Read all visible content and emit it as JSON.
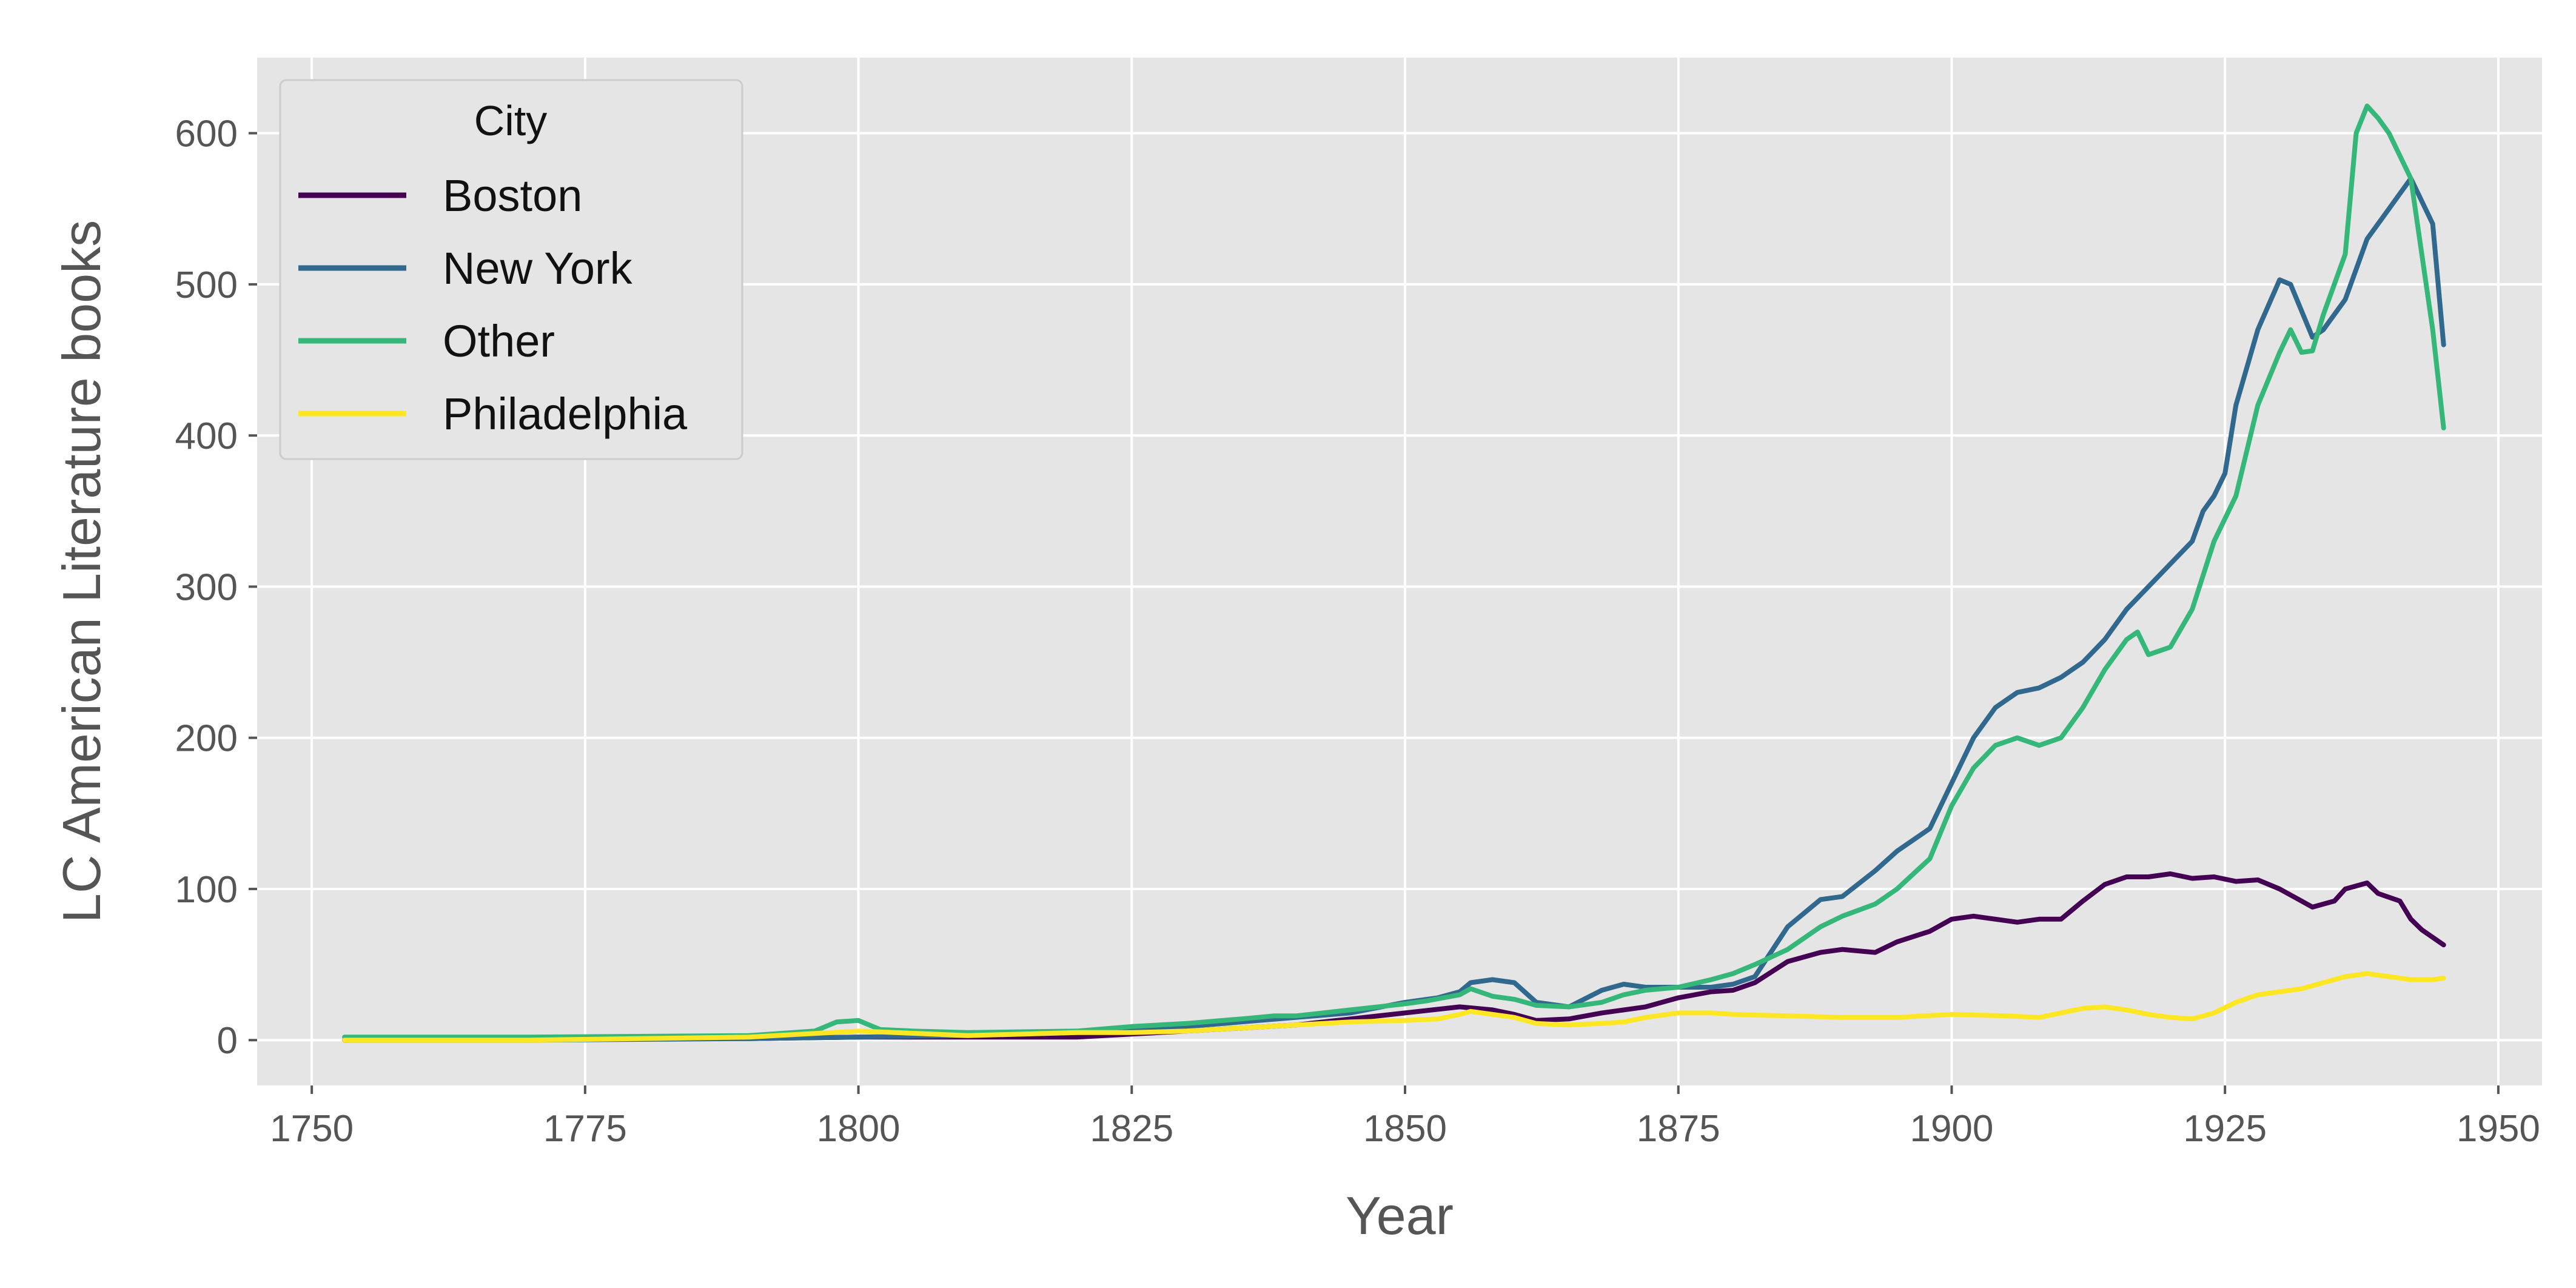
{
  "chart_data": {
    "type": "line",
    "xlabel": "Year",
    "ylabel": "LC American Literature books",
    "xlim": [
      1745,
      1954
    ],
    "ylim": [
      -30,
      650
    ],
    "xticks": [
      1750,
      1775,
      1800,
      1825,
      1850,
      1875,
      1900,
      1925,
      1950
    ],
    "yticks": [
      0,
      100,
      200,
      300,
      400,
      500,
      600
    ],
    "xtick_labels": [
      "1750",
      "1775",
      "1800",
      "1825",
      "1850",
      "1875",
      "1900",
      "1925",
      "1950"
    ],
    "ytick_labels": [
      "0",
      "100",
      "200",
      "300",
      "400",
      "500",
      "600"
    ],
    "grid": true,
    "background": "#e5e5e5",
    "legend": {
      "title": "City",
      "position": "top-left"
    },
    "series": [
      {
        "name": "Boston",
        "color": "#440154",
        "x": [
          1753,
          1760,
          1770,
          1780,
          1790,
          1800,
          1810,
          1820,
          1825,
          1830,
          1835,
          1840,
          1845,
          1850,
          1855,
          1858,
          1860,
          1862,
          1865,
          1868,
          1870,
          1872,
          1875,
          1878,
          1880,
          1882,
          1885,
          1888,
          1890,
          1893,
          1895,
          1898,
          1900,
          1902,
          1904,
          1906,
          1908,
          1910,
          1912,
          1914,
          1916,
          1918,
          1920,
          1922,
          1924,
          1926,
          1928,
          1930,
          1932,
          1933,
          1934,
          1935,
          1936,
          1938,
          1939,
          1941,
          1942,
          1943,
          1945
        ],
        "y": [
          0,
          1,
          1,
          1,
          1,
          2,
          2,
          2,
          4,
          6,
          8,
          10,
          14,
          18,
          22,
          20,
          17,
          13,
          14,
          18,
          20,
          22,
          28,
          32,
          33,
          38,
          52,
          58,
          60,
          58,
          65,
          72,
          80,
          82,
          80,
          78,
          80,
          80,
          92,
          103,
          108,
          108,
          110,
          107,
          108,
          105,
          106,
          100,
          92,
          88,
          90,
          92,
          100,
          104,
          97,
          92,
          80,
          73,
          63
        ]
      },
      {
        "name": "New York",
        "color": "#31688e",
        "x": [
          1753,
          1770,
          1790,
          1800,
          1810,
          1820,
          1825,
          1830,
          1835,
          1840,
          1845,
          1850,
          1853,
          1855,
          1856,
          1858,
          1860,
          1862,
          1865,
          1868,
          1870,
          1872,
          1875,
          1878,
          1880,
          1882,
          1885,
          1888,
          1890,
          1893,
          1895,
          1898,
          1900,
          1902,
          1904,
          1906,
          1908,
          1910,
          1912,
          1914,
          1916,
          1918,
          1920,
          1922,
          1923,
          1924,
          1925,
          1926,
          1928,
          1930,
          1931,
          1933,
          1934,
          1936,
          1937,
          1938,
          1940,
          1941,
          1942,
          1944,
          1945
        ],
        "y": [
          0,
          0,
          1,
          2,
          3,
          5,
          7,
          9,
          12,
          15,
          18,
          25,
          28,
          32,
          38,
          40,
          38,
          25,
          22,
          33,
          37,
          35,
          35,
          35,
          37,
          42,
          75,
          93,
          95,
          112,
          125,
          140,
          170,
          200,
          220,
          230,
          233,
          240,
          250,
          265,
          285,
          300,
          315,
          330,
          350,
          360,
          375,
          420,
          470,
          503,
          500,
          465,
          470,
          490,
          510,
          530,
          550,
          560,
          570,
          540,
          460
        ]
      },
      {
        "name": "Other",
        "color": "#35b779",
        "x": [
          1753,
          1770,
          1790,
          1796,
          1798,
          1800,
          1802,
          1805,
          1810,
          1820,
          1825,
          1830,
          1835,
          1838,
          1840,
          1845,
          1850,
          1852,
          1855,
          1856,
          1858,
          1860,
          1862,
          1865,
          1868,
          1870,
          1872,
          1875,
          1878,
          1880,
          1882,
          1885,
          1888,
          1890,
          1893,
          1895,
          1898,
          1900,
          1902,
          1904,
          1906,
          1908,
          1910,
          1912,
          1914,
          1916,
          1917,
          1918,
          1920,
          1922,
          1924,
          1926,
          1928,
          1930,
          1931,
          1932,
          1933,
          1934,
          1936,
          1937,
          1938,
          1939,
          1940,
          1942,
          1944,
          1945
        ],
        "y": [
          2,
          2,
          3,
          6,
          12,
          13,
          7,
          6,
          5,
          6,
          9,
          11,
          14,
          16,
          16,
          20,
          24,
          26,
          30,
          34,
          29,
          27,
          23,
          22,
          25,
          30,
          33,
          35,
          40,
          44,
          50,
          60,
          75,
          82,
          90,
          100,
          120,
          155,
          180,
          195,
          200,
          195,
          200,
          220,
          245,
          265,
          270,
          255,
          260,
          285,
          330,
          360,
          420,
          455,
          470,
          455,
          456,
          480,
          520,
          600,
          618,
          610,
          600,
          570,
          470,
          405
        ]
      },
      {
        "name": "Philadelphia",
        "color": "#fde725",
        "x": [
          1753,
          1770,
          1790,
          1800,
          1810,
          1820,
          1825,
          1830,
          1835,
          1840,
          1845,
          1850,
          1853,
          1855,
          1856,
          1858,
          1860,
          1862,
          1865,
          1868,
          1870,
          1872,
          1875,
          1878,
          1880,
          1885,
          1890,
          1895,
          1900,
          1905,
          1908,
          1910,
          1912,
          1914,
          1916,
          1918,
          1920,
          1922,
          1924,
          1926,
          1928,
          1930,
          1932,
          1934,
          1936,
          1938,
          1940,
          1942,
          1944,
          1945
        ],
        "y": [
          0,
          0,
          2,
          6,
          3,
          5,
          5,
          6,
          8,
          10,
          12,
          13,
          14,
          17,
          19,
          17,
          15,
          11,
          10,
          11,
          12,
          15,
          18,
          18,
          17,
          16,
          15,
          15,
          17,
          16,
          15,
          18,
          21,
          22,
          20,
          17,
          15,
          14,
          18,
          25,
          30,
          32,
          34,
          38,
          42,
          44,
          42,
          40,
          40,
          41
        ]
      }
    ]
  }
}
